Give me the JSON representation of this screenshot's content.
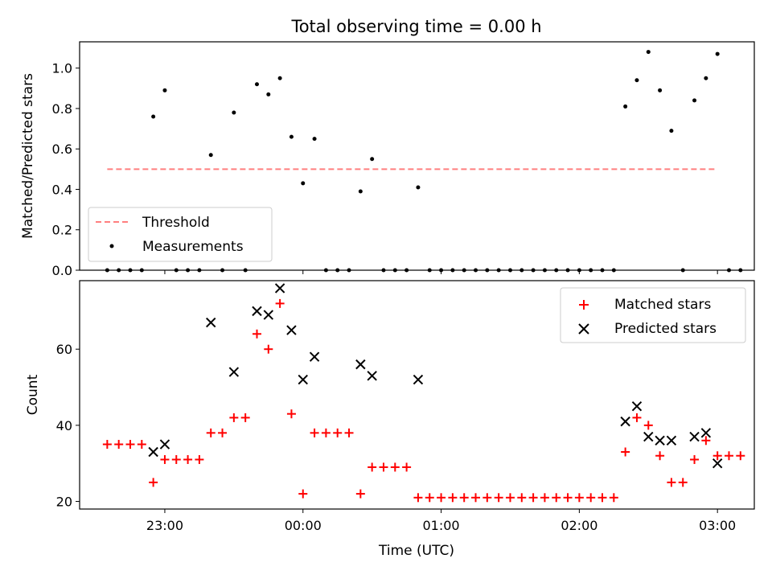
{
  "chart_data": [
    {
      "panel": "top",
      "type": "scatter",
      "title": "Total observing time = 0.00 h",
      "xlabel": "",
      "ylabel": "Matched/Predicted stars",
      "ylim": [
        0,
        1.13
      ],
      "yticks": [
        0.0,
        0.2,
        0.4,
        0.6,
        0.8,
        1.0
      ],
      "yticklabels": [
        "0.0",
        "0.2",
        "0.4",
        "0.6",
        "0.8",
        "1.0"
      ],
      "xlim": [
        "22:23",
        "03:16"
      ],
      "xticks": [
        "23:00",
        "00:00",
        "01:00",
        "02:00",
        "03:00"
      ],
      "grid": false,
      "legend_position": "lower-left",
      "threshold": {
        "name": "Threshold",
        "value": 0.5,
        "x_range": [
          "22:35",
          "03:00"
        ],
        "color": "#ff7f7f"
      },
      "series": [
        {
          "name": "Measurements",
          "color": "#000000",
          "points": [
            [
              "22:35",
              0.0
            ],
            [
              "22:40",
              0.0
            ],
            [
              "22:45",
              0.0
            ],
            [
              "22:50",
              0.0
            ],
            [
              "22:55",
              0.76
            ],
            [
              "23:00",
              0.89
            ],
            [
              "23:05",
              0.0
            ],
            [
              "23:10",
              0.0
            ],
            [
              "23:15",
              0.0
            ],
            [
              "23:20",
              0.57
            ],
            [
              "23:25",
              0.0
            ],
            [
              "23:30",
              0.78
            ],
            [
              "23:35",
              0.0
            ],
            [
              "23:40",
              0.92
            ],
            [
              "23:45",
              0.87
            ],
            [
              "23:50",
              0.95
            ],
            [
              "23:55",
              0.66
            ],
            [
              "00:00",
              0.43
            ],
            [
              "00:05",
              0.65
            ],
            [
              "00:10",
              0.0
            ],
            [
              "00:15",
              0.0
            ],
            [
              "00:20",
              0.0
            ],
            [
              "00:25",
              0.39
            ],
            [
              "00:30",
              0.55
            ],
            [
              "00:35",
              0.0
            ],
            [
              "00:40",
              0.0
            ],
            [
              "00:45",
              0.0
            ],
            [
              "00:50",
              0.41
            ],
            [
              "00:55",
              0.0
            ],
            [
              "01:00",
              0.0
            ],
            [
              "01:05",
              0.0
            ],
            [
              "01:10",
              0.0
            ],
            [
              "01:15",
              0.0
            ],
            [
              "01:20",
              0.0
            ],
            [
              "01:25",
              0.0
            ],
            [
              "01:30",
              0.0
            ],
            [
              "01:35",
              0.0
            ],
            [
              "01:40",
              0.0
            ],
            [
              "01:45",
              0.0
            ],
            [
              "01:50",
              0.0
            ],
            [
              "01:55",
              0.0
            ],
            [
              "02:00",
              0.0
            ],
            [
              "02:05",
              0.0
            ],
            [
              "02:10",
              0.0
            ],
            [
              "02:15",
              0.0
            ],
            [
              "02:20",
              0.81
            ],
            [
              "02:25",
              0.94
            ],
            [
              "02:30",
              1.08
            ],
            [
              "02:35",
              0.89
            ],
            [
              "02:40",
              0.69
            ],
            [
              "02:45",
              0.0
            ],
            [
              "02:50",
              0.84
            ],
            [
              "02:55",
              0.95
            ],
            [
              "03:00",
              1.07
            ],
            [
              "03:05",
              0.0
            ],
            [
              "03:10",
              0.0
            ]
          ]
        }
      ]
    },
    {
      "panel": "bottom",
      "type": "scatter",
      "title": "",
      "xlabel": "Time (UTC)",
      "ylabel": "Count",
      "ylim": [
        18,
        78
      ],
      "yticks": [
        20,
        40,
        60
      ],
      "yticklabels": [
        "20",
        "40",
        "60"
      ],
      "xlim": [
        "22:23",
        "03:16"
      ],
      "xticks": [
        "23:00",
        "00:00",
        "01:00",
        "02:00",
        "03:00"
      ],
      "xticklabels": [
        "23:00",
        "00:00",
        "01:00",
        "02:00",
        "03:00"
      ],
      "grid": false,
      "legend_position": "top-right",
      "series": [
        {
          "name": "Matched stars",
          "marker": "plus",
          "color": "#ff0000",
          "points": [
            [
              "22:35",
              35
            ],
            [
              "22:40",
              35
            ],
            [
              "22:45",
              35
            ],
            [
              "22:50",
              35
            ],
            [
              "22:55",
              25
            ],
            [
              "23:00",
              31
            ],
            [
              "23:05",
              31
            ],
            [
              "23:10",
              31
            ],
            [
              "23:15",
              31
            ],
            [
              "23:20",
              38
            ],
            [
              "23:25",
              38
            ],
            [
              "23:30",
              42
            ],
            [
              "23:35",
              42
            ],
            [
              "23:40",
              64
            ],
            [
              "23:45",
              60
            ],
            [
              "23:50",
              72
            ],
            [
              "23:55",
              43
            ],
            [
              "00:00",
              22
            ],
            [
              "00:05",
              38
            ],
            [
              "00:10",
              38
            ],
            [
              "00:15",
              38
            ],
            [
              "00:20",
              38
            ],
            [
              "00:25",
              22
            ],
            [
              "00:30",
              29
            ],
            [
              "00:35",
              29
            ],
            [
              "00:40",
              29
            ],
            [
              "00:45",
              29
            ],
            [
              "00:50",
              21
            ],
            [
              "00:55",
              21
            ],
            [
              "01:00",
              21
            ],
            [
              "01:05",
              21
            ],
            [
              "01:10",
              21
            ],
            [
              "01:15",
              21
            ],
            [
              "01:20",
              21
            ],
            [
              "01:25",
              21
            ],
            [
              "01:30",
              21
            ],
            [
              "01:35",
              21
            ],
            [
              "01:40",
              21
            ],
            [
              "01:45",
              21
            ],
            [
              "01:50",
              21
            ],
            [
              "01:55",
              21
            ],
            [
              "02:00",
              21
            ],
            [
              "02:05",
              21
            ],
            [
              "02:10",
              21
            ],
            [
              "02:15",
              21
            ],
            [
              "02:20",
              33
            ],
            [
              "02:25",
              42
            ],
            [
              "02:30",
              40
            ],
            [
              "02:35",
              32
            ],
            [
              "02:40",
              25
            ],
            [
              "02:45",
              25
            ],
            [
              "02:50",
              31
            ],
            [
              "02:55",
              36
            ],
            [
              "03:00",
              32
            ],
            [
              "03:05",
              32
            ],
            [
              "03:10",
              32
            ]
          ]
        },
        {
          "name": "Predicted stars",
          "marker": "x",
          "color": "#000000",
          "points": [
            [
              "22:55",
              33
            ],
            [
              "23:00",
              35
            ],
            [
              "23:20",
              67
            ],
            [
              "23:30",
              54
            ],
            [
              "23:40",
              70
            ],
            [
              "23:45",
              69
            ],
            [
              "23:50",
              76
            ],
            [
              "23:55",
              65
            ],
            [
              "00:00",
              52
            ],
            [
              "00:05",
              58
            ],
            [
              "00:25",
              56
            ],
            [
              "00:30",
              53
            ],
            [
              "00:50",
              52
            ],
            [
              "02:20",
              41
            ],
            [
              "02:25",
              45
            ],
            [
              "02:30",
              37
            ],
            [
              "02:35",
              36
            ],
            [
              "02:40",
              36
            ],
            [
              "02:50",
              37
            ],
            [
              "02:55",
              38
            ],
            [
              "03:00",
              30
            ]
          ]
        }
      ]
    }
  ]
}
